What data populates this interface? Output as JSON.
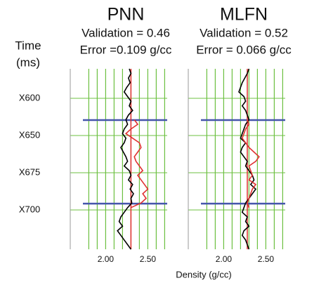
{
  "axis_titles": {
    "y": [
      "Time",
      "(ms)"
    ],
    "x": "Density (g/cc)"
  },
  "time_labels": [
    "X600",
    "X650",
    "X675",
    "X700"
  ],
  "chart_data": [
    {
      "type": "line",
      "title": "PNN",
      "subtitle": [
        "Validation = 0.46",
        "Error =0.109 g/cc"
      ],
      "xlim": [
        1.58,
        2.73
      ],
      "xticks": [
        {
          "value": 2.0,
          "label": "2.00"
        },
        {
          "value": 2.5,
          "label": "2.50"
        }
      ],
      "xgrid": [
        1.8,
        1.9,
        2.0,
        2.1,
        2.2,
        2.3,
        2.4,
        2.5,
        2.6,
        2.7
      ],
      "reference_line": {
        "value": 2.3,
        "color": "#e03030"
      },
      "series": [
        {
          "color": "#000000",
          "values": [
            2.28,
            2.3,
            2.27,
            2.29,
            2.25,
            2.22,
            2.26,
            2.3,
            2.28,
            2.32,
            2.27,
            2.24,
            2.26,
            2.22,
            2.2,
            2.24,
            2.22,
            2.18,
            2.21,
            2.24,
            2.26,
            2.22,
            2.28,
            2.3,
            2.27,
            2.32,
            2.29,
            2.33,
            2.3,
            2.31,
            2.26,
            2.22,
            2.18,
            2.16,
            2.2,
            2.14,
            2.18,
            2.22,
            2.26,
            2.3
          ]
        },
        {
          "color": "#e03030",
          "values": [
            null,
            null,
            null,
            null,
            null,
            null,
            null,
            null,
            null,
            null,
            null,
            2.34,
            2.38,
            2.3,
            2.24,
            2.32,
            2.4,
            2.42,
            2.38,
            2.34,
            2.36,
            2.4,
            2.44,
            2.38,
            2.42,
            2.46,
            2.5,
            2.44,
            2.48,
            2.42,
            2.3,
            null,
            null,
            null,
            null,
            null,
            null,
            null,
            null,
            null
          ]
        }
      ]
    },
    {
      "type": "line",
      "title": "MLFN",
      "subtitle": [
        "Validation = 0.52",
        "Error = 0.066 g/cc"
      ],
      "xlim": [
        1.58,
        2.73
      ],
      "xticks": [
        {
          "value": 2.0,
          "label": "2.00"
        },
        {
          "value": 2.5,
          "label": "2.50"
        }
      ],
      "xgrid": [
        1.8,
        1.9,
        2.0,
        2.1,
        2.2,
        2.3,
        2.4,
        2.5,
        2.6,
        2.7
      ],
      "reference_line": {
        "value": 2.28,
        "color": "#e03030"
      },
      "series": [
        {
          "color": "#000000",
          "values": [
            2.3,
            2.28,
            2.25,
            2.22,
            2.2,
            2.18,
            2.24,
            2.26,
            2.22,
            2.26,
            2.28,
            2.3,
            2.26,
            2.24,
            2.22,
            2.2,
            2.26,
            2.22,
            2.2,
            2.24,
            2.28,
            2.26,
            2.3,
            2.34,
            2.36,
            2.32,
            2.38,
            2.34,
            2.3,
            2.26,
            2.24,
            2.22,
            2.28,
            2.26,
            2.3,
            2.24,
            2.22,
            2.26,
            2.28,
            2.3
          ]
        },
        {
          "color": "#e03030",
          "values": [
            null,
            null,
            null,
            null,
            null,
            null,
            null,
            null,
            null,
            null,
            null,
            2.28,
            2.3,
            2.26,
            2.24,
            2.22,
            2.26,
            2.3,
            2.36,
            2.42,
            2.38,
            2.3,
            2.32,
            2.34,
            2.3,
            2.38,
            2.34,
            2.32,
            2.3,
            2.28,
            2.3,
            null,
            null,
            null,
            null,
            null,
            null,
            null,
            null,
            null
          ]
        }
      ]
    }
  ]
}
